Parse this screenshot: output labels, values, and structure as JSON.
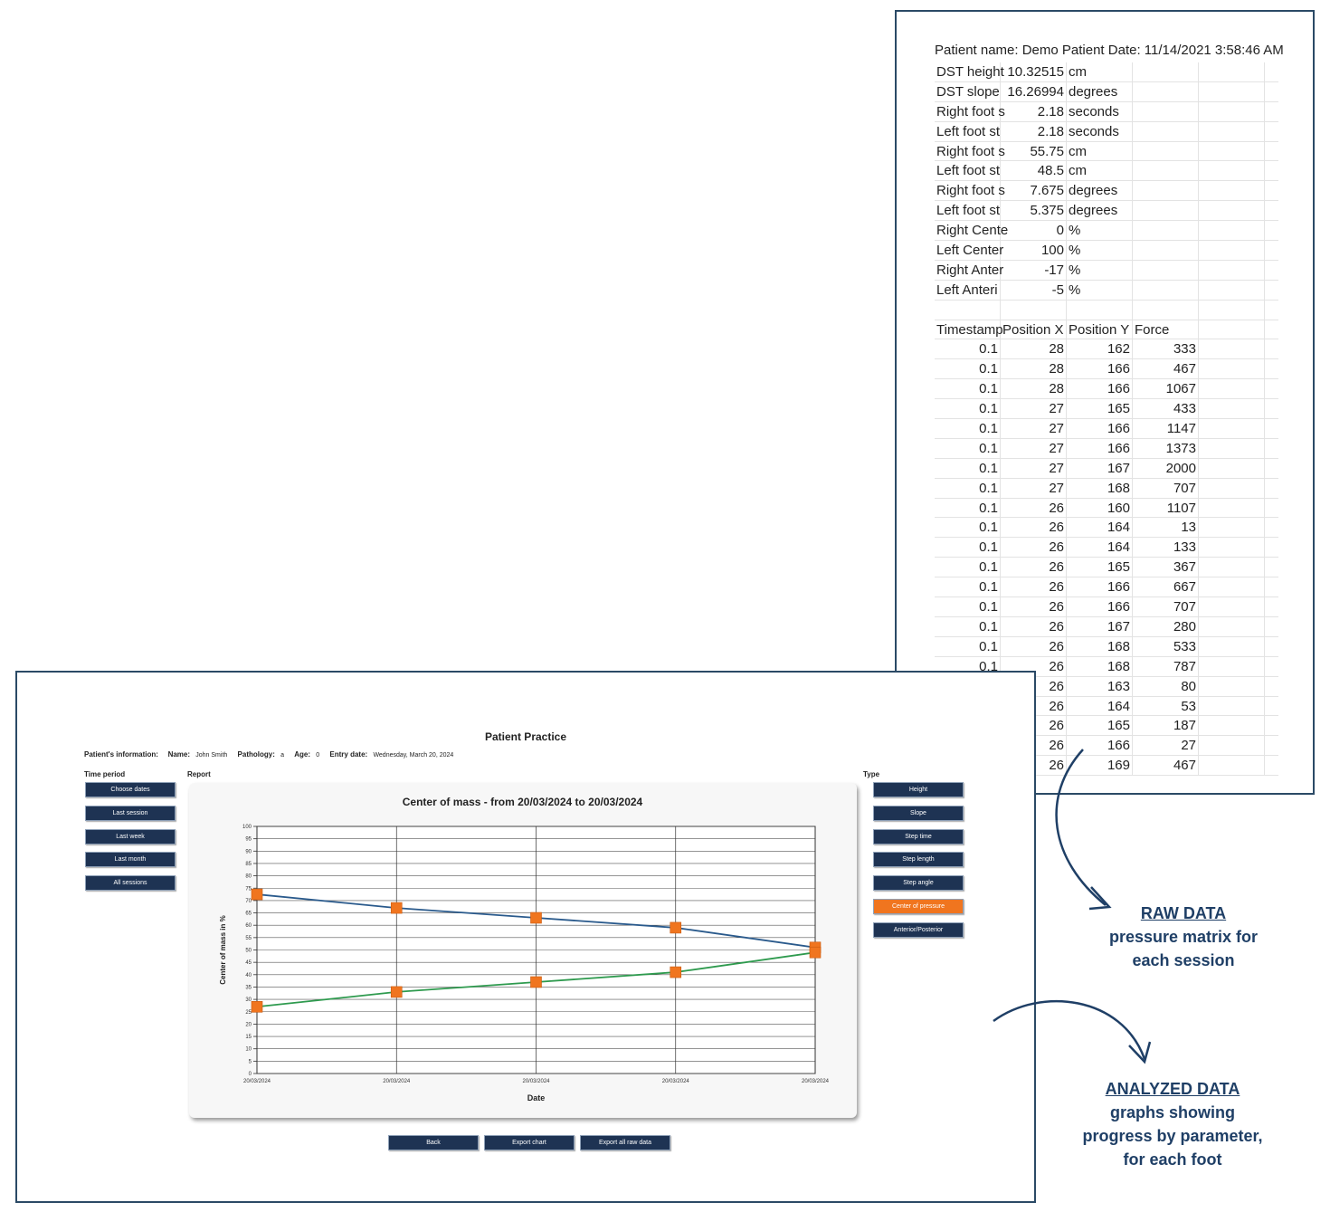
{
  "spreadsheet": {
    "title": "Patient name: Demo Patient Date: 11/14/2021 3:58:46 AM",
    "summary_rows": [
      {
        "label": "DST height",
        "value": "10.32515",
        "unit": "cm"
      },
      {
        "label": "DST slope",
        "value": "16.26994",
        "unit": "degrees"
      },
      {
        "label": "Right foot s",
        "value": "2.18",
        "unit": "seconds"
      },
      {
        "label": "Left foot st",
        "value": "2.18",
        "unit": "seconds"
      },
      {
        "label": "Right foot s",
        "value": "55.75",
        "unit": "cm"
      },
      {
        "label": "Left foot st",
        "value": "48.5",
        "unit": "cm"
      },
      {
        "label": "Right foot s",
        "value": "7.675",
        "unit": "degrees"
      },
      {
        "label": "Left foot st",
        "value": "5.375",
        "unit": "degrees"
      },
      {
        "label": "Right Cente",
        "value": "0",
        "unit": "%"
      },
      {
        "label": "Left Center",
        "value": "100",
        "unit": "%"
      },
      {
        "label": "Right Anter",
        "value": "-17",
        "unit": "%"
      },
      {
        "label": "Left Anteri",
        "value": "-5",
        "unit": "%"
      }
    ],
    "raw_headers": [
      "Timestamp",
      "Position X",
      "Position Y",
      "Force"
    ],
    "raw_rows": [
      [
        "0.1",
        "28",
        "162",
        "333"
      ],
      [
        "0.1",
        "28",
        "166",
        "467"
      ],
      [
        "0.1",
        "28",
        "166",
        "1067"
      ],
      [
        "0.1",
        "27",
        "165",
        "433"
      ],
      [
        "0.1",
        "27",
        "166",
        "1147"
      ],
      [
        "0.1",
        "27",
        "166",
        "1373"
      ],
      [
        "0.1",
        "27",
        "167",
        "2000"
      ],
      [
        "0.1",
        "27",
        "168",
        "707"
      ],
      [
        "0.1",
        "26",
        "160",
        "1107"
      ],
      [
        "0.1",
        "26",
        "164",
        "13"
      ],
      [
        "0.1",
        "26",
        "164",
        "133"
      ],
      [
        "0.1",
        "26",
        "165",
        "367"
      ],
      [
        "0.1",
        "26",
        "166",
        "667"
      ],
      [
        "0.1",
        "26",
        "166",
        "707"
      ],
      [
        "0.1",
        "26",
        "167",
        "280"
      ],
      [
        "0.1",
        "26",
        "168",
        "533"
      ],
      [
        "0.1",
        "26",
        "168",
        "787"
      ],
      [
        "",
        "26",
        "163",
        "80"
      ],
      [
        "",
        "26",
        "164",
        "53"
      ],
      [
        "",
        "26",
        "165",
        "187"
      ],
      [
        "",
        "26",
        "166",
        "27"
      ],
      [
        "",
        "26",
        "169",
        "467"
      ]
    ]
  },
  "app": {
    "title": "Patient Practice",
    "patient_info": {
      "label": "Patient's information:",
      "name_label": "Name:",
      "name": "John Smith",
      "pathology_label": "Pathology:",
      "pathology": "a",
      "age_label": "Age:",
      "age": "0",
      "entry_label": "Entry date:",
      "entry_date": "Wednesday, March 20, 2024"
    },
    "time_period_label": "Time period",
    "time_period_buttons": [
      "Choose dates",
      "Last session",
      "Last week",
      "Last month",
      "All sessions"
    ],
    "report_label": "Report",
    "type_label": "Type",
    "type_buttons": [
      "Height",
      "Slope",
      "Step time",
      "Step length",
      "Step angle",
      "Center of pressure",
      "Anterior/Posterior"
    ],
    "active_type": "Center of pressure",
    "bottom_buttons": [
      "Back",
      "Export chart",
      "Export all raw data"
    ]
  },
  "chart_data": {
    "type": "line",
    "title": "Center of mass - from 20/03/2024 to 20/03/2024",
    "xlabel": "Date",
    "ylabel": "Center of mass in %",
    "categories": [
      "20/03/2024",
      "20/03/2024",
      "20/03/2024",
      "20/03/2024",
      "20/03/2024"
    ],
    "ylim": [
      0,
      100
    ],
    "yticks": [
      0,
      5,
      10,
      15,
      20,
      25,
      30,
      35,
      40,
      45,
      50,
      55,
      60,
      65,
      70,
      75,
      80,
      85,
      90,
      95,
      100
    ],
    "grid": true,
    "series": [
      {
        "values": [
          72.5,
          67,
          63,
          59,
          51
        ],
        "color": "#2a5a8c"
      },
      {
        "values": [
          27,
          33,
          37,
          41,
          49
        ],
        "color": "#2e9a4e"
      }
    ],
    "marker_color": "#f0751f"
  },
  "annotations": {
    "raw": {
      "head": "RAW DATA",
      "line1": "pressure matrix for",
      "line2": "each session"
    },
    "analyzed": {
      "head": "ANALYZED DATA",
      "line1": "graphs showing",
      "line2": "progress by parameter,",
      "line3": "for each foot"
    }
  }
}
